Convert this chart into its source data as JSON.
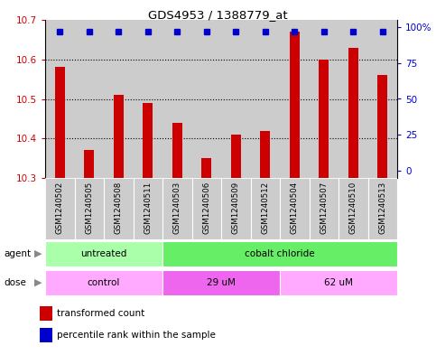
{
  "title": "GDS4953 / 1388779_at",
  "samples": [
    "GSM1240502",
    "GSM1240505",
    "GSM1240508",
    "GSM1240511",
    "GSM1240503",
    "GSM1240506",
    "GSM1240509",
    "GSM1240512",
    "GSM1240504",
    "GSM1240507",
    "GSM1240510",
    "GSM1240513"
  ],
  "bar_values": [
    10.58,
    10.37,
    10.51,
    10.49,
    10.44,
    10.35,
    10.41,
    10.42,
    10.67,
    10.6,
    10.63,
    10.56
  ],
  "percentile_values": [
    97,
    97,
    97,
    97,
    97,
    97,
    97,
    97,
    97,
    97,
    97,
    97
  ],
  "y_min": 10.3,
  "y_max": 10.7,
  "y_ticks": [
    10.3,
    10.4,
    10.5,
    10.6,
    10.7
  ],
  "y2_ticks": [
    0,
    25,
    50,
    75,
    100
  ],
  "y2_labels": [
    "0",
    "25",
    "50",
    "75",
    "100%"
  ],
  "bar_color": "#cc0000",
  "dot_color": "#0000cc",
  "agent_labels": [
    "untreated",
    "cobalt chloride"
  ],
  "agent_col_ranges": [
    [
      0,
      4
    ],
    [
      4,
      12
    ]
  ],
  "agent_colors": [
    "#aaffaa",
    "#66ee66"
  ],
  "dose_labels": [
    "control",
    "29 uM",
    "62 uM"
  ],
  "dose_col_ranges": [
    [
      0,
      4
    ],
    [
      4,
      8
    ],
    [
      8,
      12
    ]
  ],
  "dose_colors": [
    "#ffaaff",
    "#ee66ee",
    "#ffaaff"
  ],
  "legend_bar_label": "transformed count",
  "legend_dot_label": "percentile rank within the sample",
  "sample_bg_color": "#cccccc",
  "plot_bg_color": "#dddddd",
  "bar_width": 0.35,
  "figsize": [
    4.83,
    3.93
  ],
  "dpi": 100
}
